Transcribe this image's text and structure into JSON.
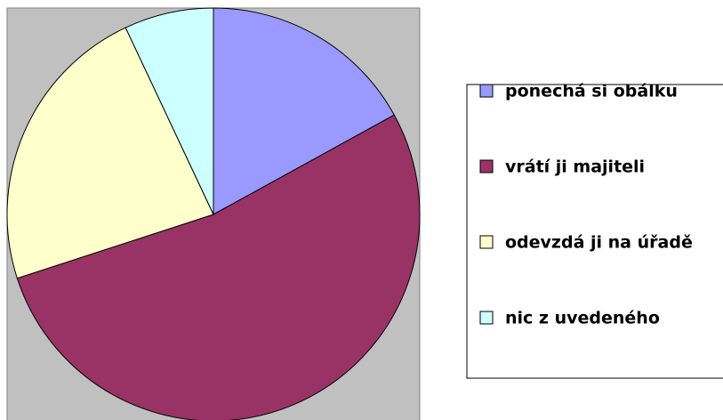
{
  "chart_data": {
    "type": "pie",
    "categories": [
      "ponechá si obálku",
      "vrátí ji majiteli",
      "odevzdá ji na úřadě",
      "nic z uvedeného"
    ],
    "values": [
      17,
      53,
      23,
      7
    ],
    "colors": [
      "#9999ff",
      "#993366",
      "#ffffcc",
      "#ccffff"
    ],
    "legend": "right"
  }
}
